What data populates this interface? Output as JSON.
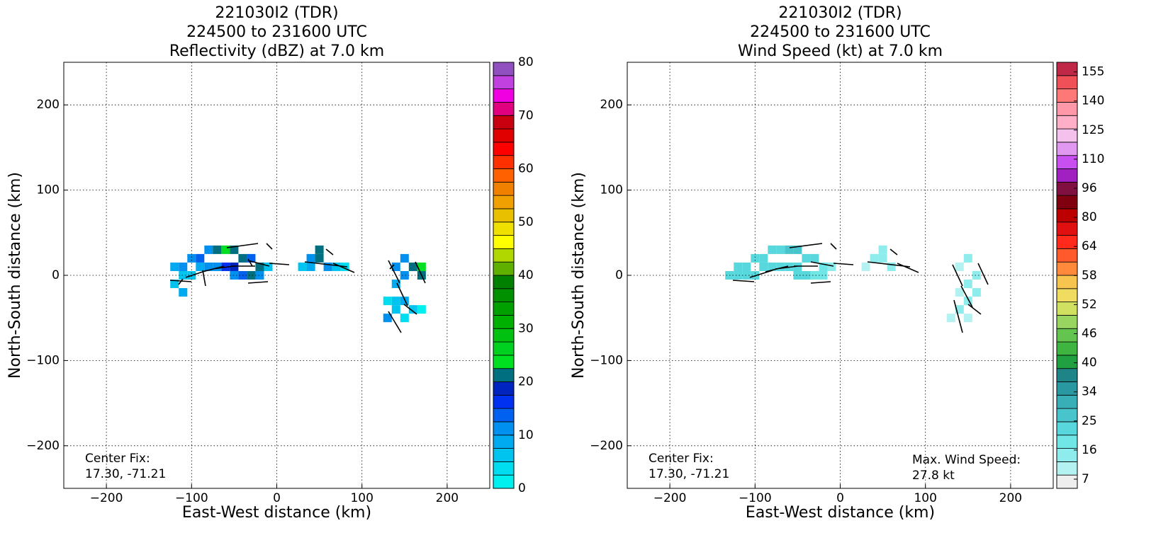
{
  "chart_data": [
    {
      "type": "heatmap",
      "title": [
        "221030I2 (TDR)",
        "224500 to 231600 UTC",
        "Reflectivity (dBZ) at 7.0 km"
      ],
      "xlabel": "East-West distance (km)",
      "ylabel": "North-South distance (km)",
      "xlim": [
        -250,
        250
      ],
      "ylim": [
        -250,
        250
      ],
      "xticks": [
        {
          "value": -200,
          "label": "−200"
        },
        {
          "value": -100,
          "label": "−100"
        },
        0,
        100,
        200
      ],
      "yticks": [
        {
          "value": -200,
          "label": "−200"
        },
        {
          "value": -100,
          "label": "−100"
        },
        0,
        100,
        200
      ],
      "grid": true,
      "cells": {
        "x": [
          -120,
          -110,
          -100,
          -90,
          -80,
          -70,
          -60,
          -50,
          -40,
          -30,
          -20,
          -30,
          -50,
          -60,
          -70,
          -80,
          -90,
          -100,
          -110,
          -120,
          -110,
          -50,
          -40,
          -20,
          -10,
          40,
          50,
          50,
          60,
          70,
          40,
          30,
          80,
          140,
          150,
          160,
          170,
          170,
          150,
          140,
          130,
          140,
          150,
          160,
          140,
          130,
          150,
          170
        ],
        "y": [
          10,
          10,
          20,
          20,
          30,
          30,
          30,
          30,
          20,
          20,
          10,
          0,
          10,
          10,
          10,
          10,
          10,
          0,
          0,
          -10,
          -20,
          0,
          0,
          0,
          10,
          20,
          20,
          30,
          10,
          10,
          10,
          10,
          10,
          10,
          20,
          10,
          10,
          0,
          0,
          -10,
          -30,
          -30,
          -30,
          -40,
          -40,
          -50,
          -50,
          -40
        ],
        "values": [
          8,
          12,
          11,
          14,
          12,
          22,
          24,
          22,
          20,
          13,
          22,
          21,
          18,
          15,
          12,
          10,
          9,
          7,
          6,
          5,
          8,
          11,
          14,
          12,
          6,
          12,
          21,
          20,
          10,
          6,
          9,
          5,
          4,
          12,
          10,
          22,
          24,
          20,
          11,
          8,
          4,
          6,
          9,
          7,
          5,
          10,
          3,
          2
        ]
      },
      "colorbar": {
        "clim": [
          0,
          80
        ],
        "ticks": [
          0,
          10,
          20,
          30,
          40,
          50,
          60,
          70,
          80
        ],
        "colors": [
          "#00f0f0",
          "#00dcf0",
          "#00c4f0",
          "#00aaf0",
          "#0090f0",
          "#0060f0",
          "#0030f0",
          "#0024c0",
          "#007080",
          "#00e020",
          "#00d020",
          "#00c010",
          "#00b000",
          "#00a000",
          "#009000",
          "#008000",
          "#60b000",
          "#b0d800",
          "#ffff00",
          "#f0e000",
          "#e8c000",
          "#f0a000",
          "#f08000",
          "#ff6000",
          "#ff3000",
          "#ff0000",
          "#e00000",
          "#c80010",
          "#e00080",
          "#f000e0",
          "#c040e0",
          "#9050c0"
        ]
      },
      "annotations": [
        "Center Fix:",
        "17.30, -71.21"
      ]
    },
    {
      "type": "heatmap",
      "title": [
        "221030I2 (TDR)",
        "224500 to 231600 UTC",
        "Wind Speed (kt) at 7.0 km"
      ],
      "xlabel": "East-West distance (km)",
      "ylabel": "North-South distance (km)",
      "xlim": [
        -250,
        250
      ],
      "ylim": [
        -250,
        250
      ],
      "xticks": [
        {
          "value": -200,
          "label": "−200"
        },
        {
          "value": -100,
          "label": "−100"
        },
        0,
        100,
        200
      ],
      "yticks": [
        {
          "value": -200,
          "label": "−200"
        },
        {
          "value": -100,
          "label": "−100"
        },
        0,
        100,
        200
      ],
      "grid": true,
      "cells": {
        "x": [
          -130,
          -120,
          -110,
          -100,
          -90,
          -80,
          -70,
          -60,
          -50,
          -40,
          -30,
          -20,
          -30,
          -50,
          -60,
          -70,
          -80,
          -90,
          -100,
          -110,
          -120,
          -50,
          -40,
          -20,
          -10,
          40,
          50,
          50,
          60,
          30,
          140,
          150,
          160,
          150,
          140,
          150,
          140,
          130,
          150,
          160
        ],
        "y": [
          0,
          0,
          10,
          20,
          20,
          30,
          30,
          30,
          30,
          20,
          20,
          10,
          0,
          10,
          10,
          10,
          10,
          10,
          0,
          0,
          10,
          0,
          0,
          0,
          10,
          20,
          20,
          30,
          10,
          10,
          10,
          20,
          0,
          -10,
          -20,
          -30,
          -40,
          -50,
          -50,
          -20
        ],
        "values": [
          24,
          24,
          22,
          21,
          22,
          21,
          24,
          26,
          27.8,
          23,
          21,
          19,
          20,
          22,
          24,
          24,
          23,
          22,
          23,
          24,
          21,
          22,
          21,
          18,
          16,
          14,
          15,
          16,
          13,
          12,
          12,
          13,
          13,
          14,
          12,
          15,
          13,
          11,
          12,
          13
        ]
      },
      "colorbar": {
        "ticks": [
          7,
          16,
          25,
          34,
          40,
          46,
          52,
          58,
          64,
          80,
          96,
          110,
          125,
          140,
          155
        ],
        "colors": [
          "#eeeeee",
          "#b4f2f2",
          "#8eecec",
          "#70e6e6",
          "#58d8dc",
          "#48c4cc",
          "#38aeb6",
          "#2a98a0",
          "#1f8488",
          "#20a040",
          "#40b440",
          "#64c450",
          "#98d460",
          "#d0e060",
          "#f0dc60",
          "#f8c450",
          "#ff8a3c",
          "#ff5a2c",
          "#ff2a1c",
          "#e01010",
          "#bc0000",
          "#800010",
          "#801040",
          "#a020c0",
          "#c850f0",
          "#e098f0",
          "#f4c0ec",
          "#ffb0c8",
          "#ff98a8",
          "#ff7878",
          "#f05058",
          "#c02848"
        ]
      },
      "annotations": [
        "Center Fix:",
        "17.30, -71.21",
        "Max. Wind Speed:",
        "27.8 kt"
      ]
    }
  ]
}
